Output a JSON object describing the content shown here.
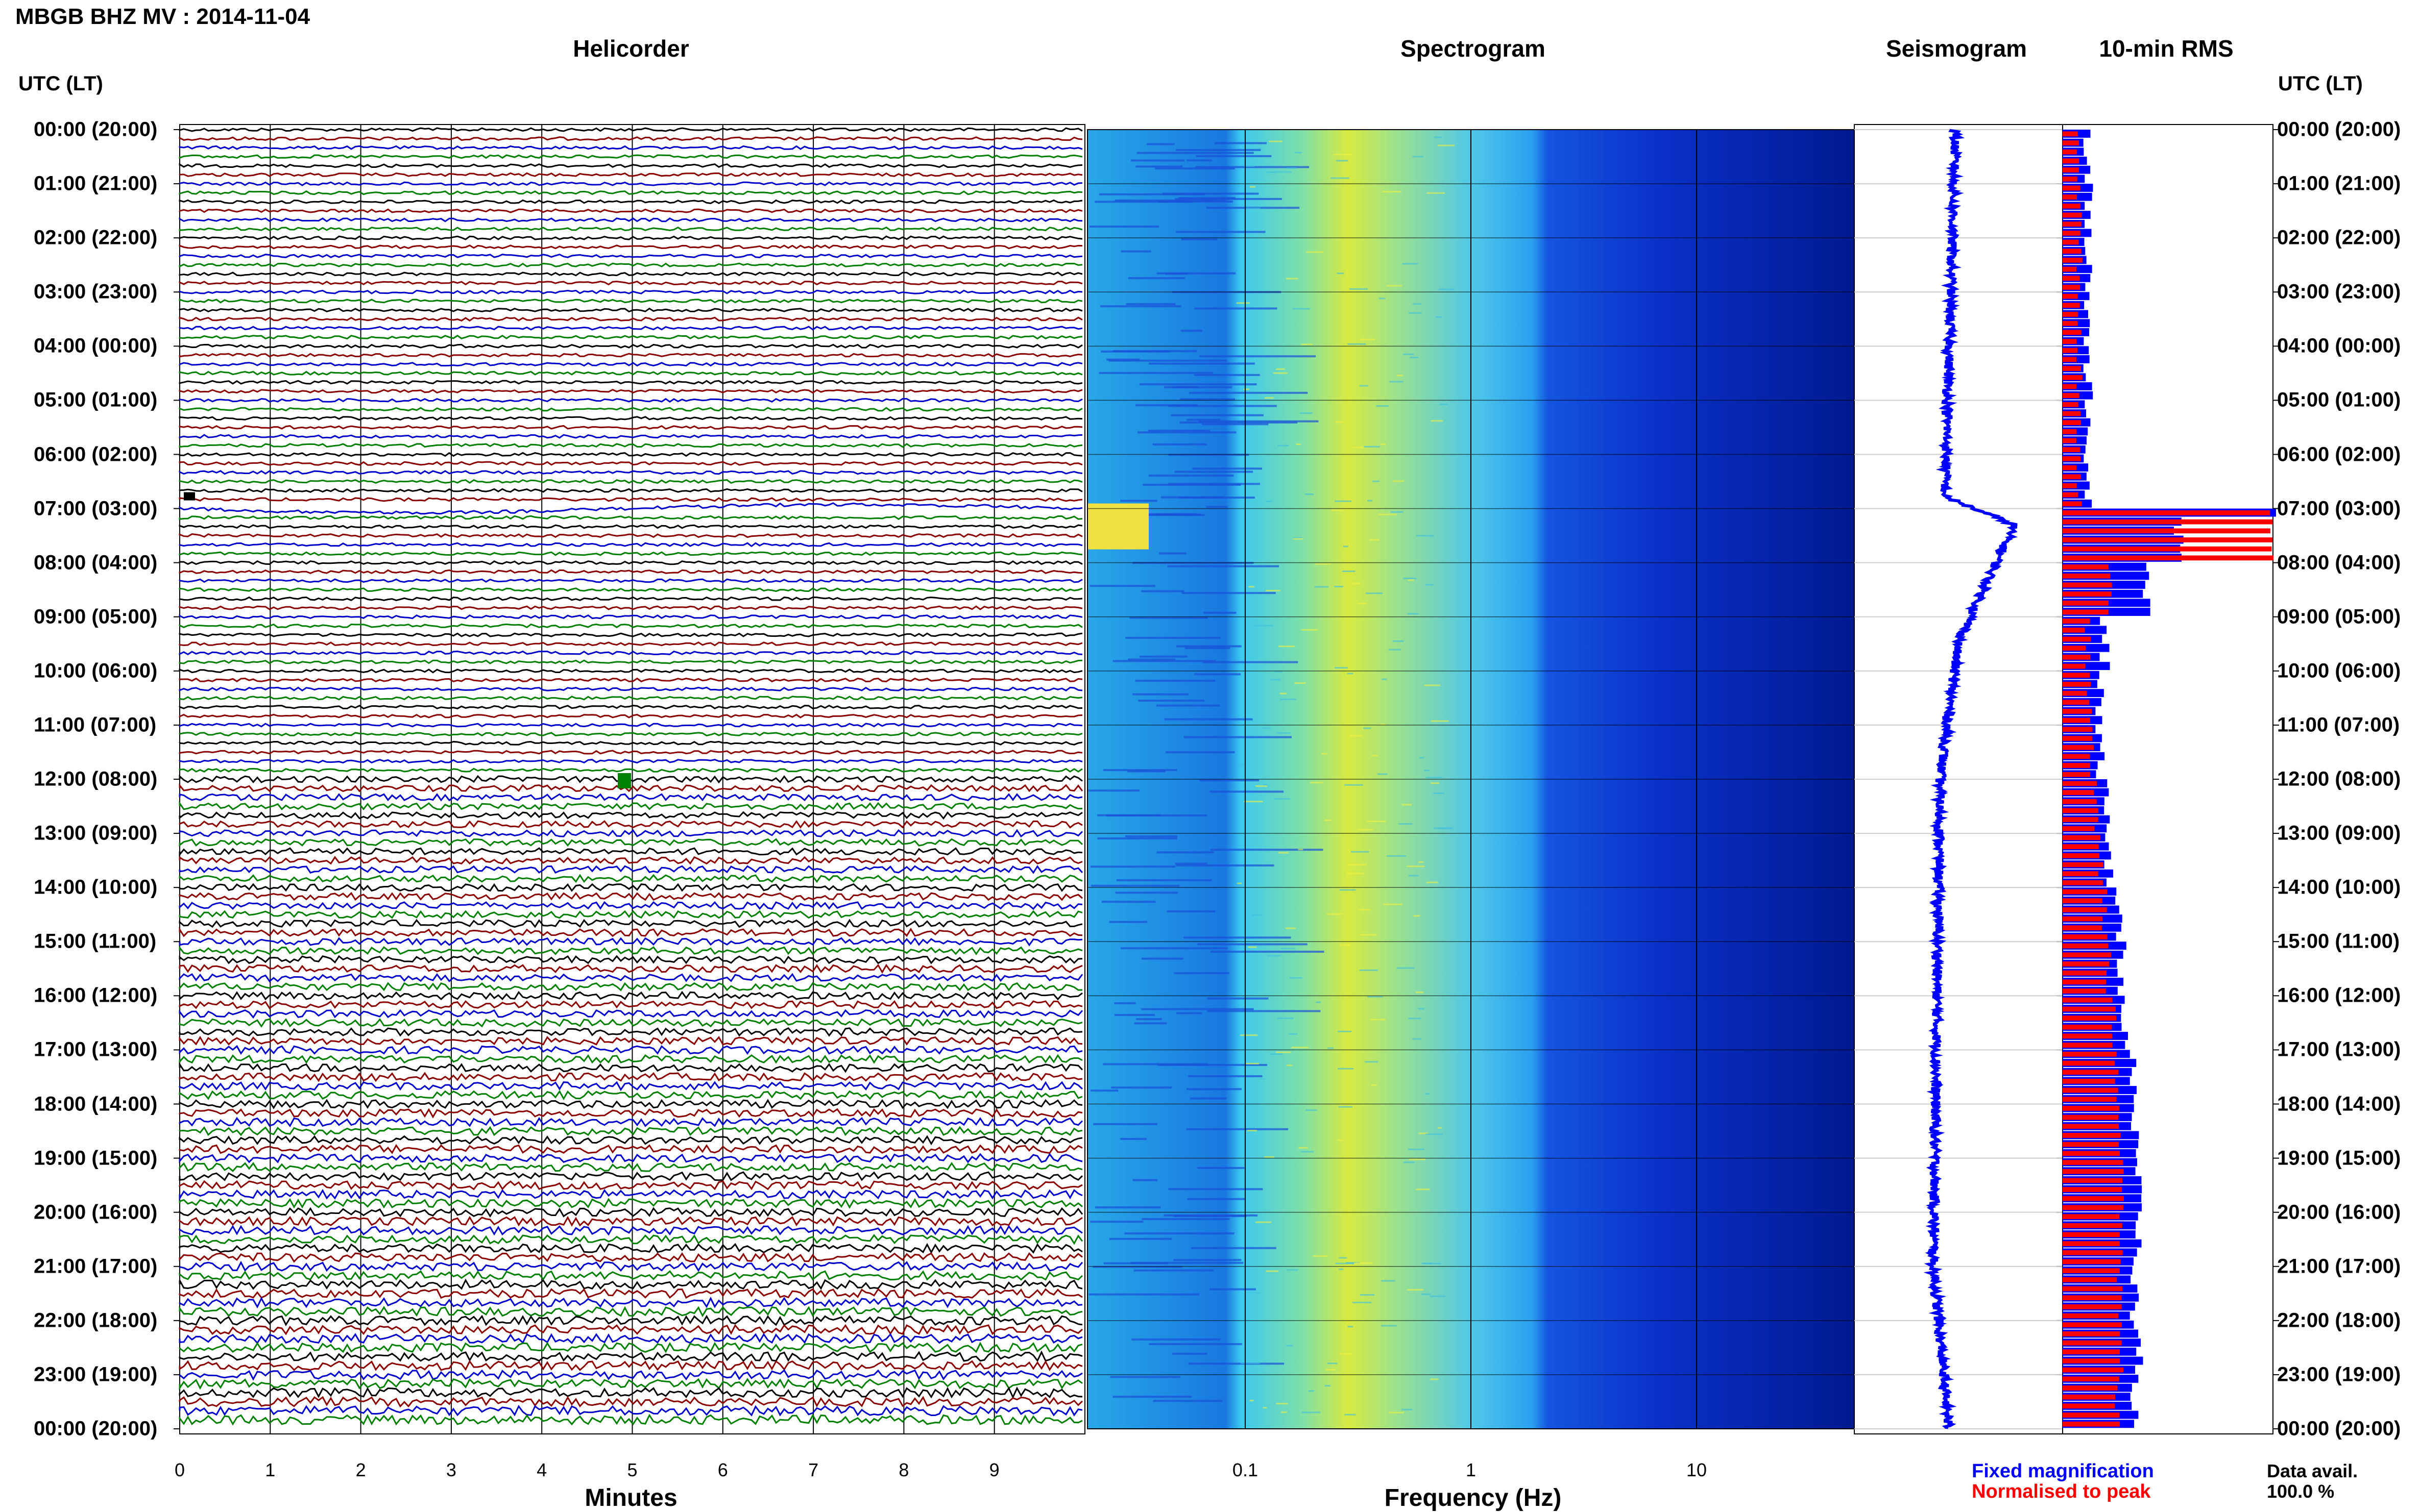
{
  "title": "MBGB BHZ MV : 2014-11-04",
  "panels": {
    "helicorder": "Helicorder",
    "spectrogram": "Spectrogram",
    "seismogram": "Seismogram",
    "rms": "10-min RMS"
  },
  "time_axis_label": "UTC (LT)",
  "time_labels": [
    "00:00 (20:00)",
    "01:00 (21:00)",
    "02:00 (22:00)",
    "03:00 (23:00)",
    "04:00 (00:00)",
    "05:00 (01:00)",
    "06:00 (02:00)",
    "07:00 (03:00)",
    "08:00 (04:00)",
    "09:00 (05:00)",
    "10:00 (06:00)",
    "11:00 (07:00)",
    "12:00 (08:00)",
    "13:00 (09:00)",
    "14:00 (10:00)",
    "15:00 (11:00)",
    "16:00 (12:00)",
    "17:00 (13:00)",
    "18:00 (14:00)",
    "19:00 (15:00)",
    "20:00 (16:00)",
    "21:00 (17:00)",
    "22:00 (18:00)",
    "23:00 (19:00)",
    "00:00 (20:00)"
  ],
  "helicorder_xlabel": "Minutes",
  "helicorder_ticks": [
    "0",
    "1",
    "2",
    "3",
    "4",
    "5",
    "6",
    "7",
    "8",
    "9"
  ],
  "spectrogram_xlabel": "Frequency (Hz)",
  "spectrogram_ticks": [
    "0.1",
    "1",
    "10"
  ],
  "legend": {
    "fixed": "Fixed magnification",
    "normalised": "Normalised to peak",
    "fixed_color": "#0000ff",
    "normalised_color": "#ff0000"
  },
  "data_avail": {
    "label": "Data avail.",
    "value": "100.0 %"
  },
  "trace_colors": [
    "#000000",
    "#8b0000",
    "#0000cd",
    "#008000"
  ],
  "chart_data": {
    "type": "area",
    "title": "MBGB BHZ MV : 2014-11-04",
    "ylabel": "UTC (LT)",
    "helicorder": {
      "xlabel": "Minutes",
      "xlim": [
        0,
        10
      ],
      "lines_per_hour": 6,
      "events_utc": [
        "07:00",
        "12:00"
      ]
    },
    "spectrogram": {
      "xlabel": "Frequency (Hz)",
      "xscale": "log",
      "xlim": [
        0.02,
        50
      ],
      "peak_energy_hz": 0.25
    },
    "seismogram": {
      "event_utc": "07:00"
    },
    "rms_10min": {
      "bin_minutes": 10,
      "bins_per_hour": 6,
      "fixed_magnification_per_hour": [
        0.12,
        0.12,
        0.12,
        0.12,
        0.12,
        0.12,
        0.12,
        0.55,
        0.4,
        0.2,
        0.18,
        0.18,
        0.22,
        0.22,
        0.26,
        0.28,
        0.3,
        0.34,
        0.34,
        0.36,
        0.36,
        0.34,
        0.36,
        0.34
      ],
      "normalised_to_peak_per_hour": [
        0.08,
        0.08,
        0.08,
        0.08,
        0.08,
        0.08,
        0.08,
        1.0,
        0.22,
        0.12,
        0.13,
        0.14,
        0.16,
        0.18,
        0.2,
        0.22,
        0.24,
        0.26,
        0.27,
        0.28,
        0.28,
        0.27,
        0.28,
        0.26
      ]
    }
  }
}
